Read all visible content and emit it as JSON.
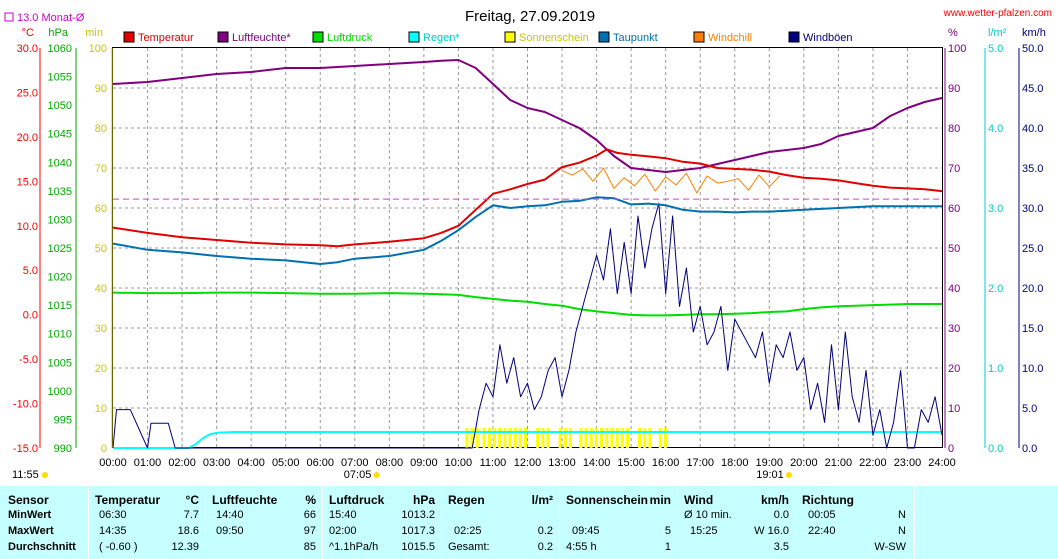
{
  "header": {
    "title": "Freitag, 27.09.2019",
    "site": "www.wetter-pfalzen.com",
    "month_avg": "13.0 Monat-Ø"
  },
  "chart_data": {
    "type": "line",
    "title": "Freitag, 27.09.2019",
    "x_ticks": [
      "00:00",
      "01:00",
      "02:00",
      "03:00",
      "04:00",
      "05:00",
      "06:00",
      "07:00",
      "08:00",
      "09:00",
      "10:00",
      "11:00",
      "12:00",
      "13:00",
      "14:00",
      "15:00",
      "16:00",
      "17:00",
      "18:00",
      "19:00",
      "20:00",
      "21:00",
      "22:00",
      "23:00",
      "24:00"
    ],
    "x_range": [
      0,
      24
    ],
    "extra_time_labels": [
      {
        "label": "11:55",
        "hour": 0
      },
      {
        "label": "07:05",
        "hour": 7.08
      },
      {
        "label": "19:01",
        "hour": 19.02
      }
    ],
    "axes": {
      "temp": {
        "unit": "°C",
        "range": [
          -15,
          30
        ],
        "ticks": [
          "30.0",
          "25.0",
          "20.0",
          "15.0",
          "10.0",
          "5.0",
          "0.0",
          "-5.0",
          "-10.0",
          "-15.0"
        ],
        "color": "#ff0000"
      },
      "pressure": {
        "unit": "hPa",
        "range": [
          990,
          1060
        ],
        "ticks": [
          "1060",
          "1055",
          "1050",
          "1045",
          "1040",
          "1035",
          "1030",
          "1025",
          "1020",
          "1015",
          "1010",
          "1005",
          "1000",
          "995",
          "990"
        ],
        "color": "#00aa00"
      },
      "minutes": {
        "unit": "min",
        "range": [
          0,
          100
        ],
        "ticks": [
          "100",
          "90",
          "80",
          "70",
          "60",
          "50",
          "40",
          "30",
          "20",
          "10",
          "0"
        ],
        "color": "#c8c800"
      },
      "humidity": {
        "unit": "%",
        "range": [
          0,
          100
        ],
        "ticks": [
          "100",
          "90",
          "80",
          "70",
          "60",
          "50",
          "40",
          "30",
          "20",
          "10",
          "0"
        ],
        "color": "#800080"
      },
      "rain": {
        "unit": "l/m²",
        "range": [
          0,
          5
        ],
        "ticks": [
          "5.0",
          "4.0",
          "3.0",
          "2.0",
          "1.0",
          "0.0"
        ],
        "color": "#00cccc"
      },
      "wind": {
        "unit": "km/h",
        "range": [
          0,
          50
        ],
        "ticks": [
          "50.0",
          "45.0",
          "40.0",
          "35.0",
          "30.0",
          "25.0",
          "20.0",
          "15.0",
          "10.0",
          "5.0",
          "0.0"
        ],
        "color": "#000080"
      }
    },
    "legend": [
      {
        "name": "Temperatur",
        "color": "#e00000"
      },
      {
        "name": "Luftfeuchte*",
        "color": "#800080"
      },
      {
        "name": "Luftdruck",
        "color": "#00dd00"
      },
      {
        "name": "Regen*",
        "color": "#00ffff"
      },
      {
        "name": "Sonnenschein",
        "color": "#ffff00"
      },
      {
        "name": "Taupunkt",
        "color": "#0070b0"
      },
      {
        "name": "Windchill",
        "color": "#ff8000"
      },
      {
        "name": "Windböen",
        "color": "#000080"
      }
    ],
    "month_avg_temp": 13.0,
    "series": [
      {
        "name": "Temperatur",
        "axis": "temp",
        "color": "#e00000",
        "x": [
          0,
          1,
          2,
          3,
          4,
          5,
          6,
          6.5,
          7,
          8,
          9,
          9.5,
          10,
          10.5,
          11,
          11.5,
          12,
          12.5,
          13,
          13.5,
          14,
          14.3,
          14.6,
          15,
          15.5,
          16,
          16.5,
          17,
          17.5,
          18,
          18.5,
          19,
          19.5,
          20,
          20.5,
          21,
          21.5,
          22,
          22.5,
          23,
          23.5,
          24
        ],
        "y": [
          9.8,
          9.2,
          8.7,
          8.4,
          8.1,
          7.9,
          7.8,
          7.7,
          7.9,
          8.2,
          8.6,
          9.2,
          10.0,
          11.8,
          13.6,
          14.1,
          14.7,
          15.2,
          16.6,
          17.1,
          17.9,
          18.6,
          18.2,
          18.0,
          17.8,
          17.6,
          17.2,
          17.0,
          16.5,
          16.4,
          16.3,
          16.1,
          15.7,
          15.4,
          15.3,
          15.1,
          14.8,
          14.5,
          14.3,
          14.2,
          14.1,
          13.9
        ]
      },
      {
        "name": "Luftfeuchte*",
        "axis": "humidity",
        "color": "#800080",
        "x": [
          0,
          1,
          2,
          3,
          4,
          5,
          6,
          7,
          8,
          9,
          9.5,
          10,
          10.5,
          11,
          11.5,
          12,
          12.5,
          13,
          13.5,
          14,
          14.5,
          15,
          15.5,
          16,
          16.5,
          17,
          17.5,
          18,
          18.5,
          19,
          19.5,
          20,
          20.5,
          21,
          21.5,
          22,
          22.5,
          23,
          23.5,
          24
        ],
        "y": [
          91,
          91.5,
          92.5,
          93.5,
          94,
          95,
          95,
          95.5,
          96,
          96.5,
          96.8,
          97,
          95,
          91,
          87,
          85,
          84,
          82,
          80,
          77,
          73,
          70,
          69.5,
          69,
          69.5,
          70,
          71,
          72,
          73,
          74,
          74.5,
          75,
          76,
          78,
          79,
          80,
          83,
          85,
          86.5,
          87.5
        ]
      },
      {
        "name": "Luftdruck",
        "axis": "pressure",
        "color": "#00dd00",
        "x": [
          0,
          1,
          2,
          3,
          4,
          5,
          6,
          7,
          8,
          9,
          9.5,
          10,
          10.5,
          11,
          11.5,
          12,
          12.5,
          13,
          13.5,
          14,
          14.5,
          15,
          15.5,
          16,
          16.5,
          17,
          17.5,
          18,
          18.5,
          19,
          19.5,
          20,
          20.5,
          21,
          21.5,
          22,
          22.5,
          23,
          23.5,
          24
        ],
        "y": [
          1017.2,
          1017.1,
          1017.1,
          1017.2,
          1017.2,
          1017.1,
          1017.0,
          1017.0,
          1017.1,
          1017.0,
          1016.9,
          1016.8,
          1016.4,
          1016.1,
          1015.8,
          1015.6,
          1015.2,
          1014.9,
          1014.3,
          1013.9,
          1013.6,
          1013.3,
          1013.2,
          1013.2,
          1013.3,
          1013.4,
          1013.4,
          1013.5,
          1013.6,
          1013.8,
          1013.9,
          1014.3,
          1014.6,
          1014.8,
          1014.9,
          1015.0,
          1015.1,
          1015.2,
          1015.2,
          1015.2
        ]
      },
      {
        "name": "Regen*",
        "axis": "rain",
        "color": "#00ffff",
        "x": [
          0,
          2.2,
          2.4,
          2.6,
          2.8,
          3.0,
          3.5,
          4,
          6,
          8,
          10,
          12,
          14,
          16,
          18,
          20,
          22,
          23.5,
          24
        ],
        "y": [
          0,
          0,
          0.05,
          0.12,
          0.17,
          0.19,
          0.2,
          0.2,
          0.2,
          0.2,
          0.2,
          0.2,
          0.2,
          0.2,
          0.2,
          0.2,
          0.2,
          0.2,
          0.2
        ]
      },
      {
        "name": "Taupunkt",
        "axis": "temp",
        "color": "#0070b0",
        "x": [
          0,
          1,
          2,
          3,
          4,
          5,
          6,
          6.5,
          7,
          8,
          9,
          9.5,
          10,
          10.5,
          11,
          11.5,
          12,
          12.5,
          13,
          13.5,
          14,
          14.5,
          15,
          15.5,
          16,
          16.5,
          17,
          17.5,
          18,
          18.5,
          19,
          19.5,
          20,
          20.5,
          21,
          21.5,
          22,
          22.5,
          23,
          23.5,
          24
        ],
        "y": [
          8.0,
          7.3,
          7.0,
          6.6,
          6.3,
          6.1,
          5.7,
          5.9,
          6.3,
          6.6,
          7.3,
          8.3,
          9.5,
          11.0,
          12.3,
          12.0,
          12.2,
          12.3,
          12.7,
          12.8,
          13.2,
          13.1,
          12.4,
          12.5,
          12.3,
          11.8,
          11.6,
          11.6,
          11.5,
          11.6,
          11.6,
          11.7,
          11.8,
          11.9,
          12.0,
          12.1,
          12.2,
          12.2,
          12.2,
          12.2,
          12.2
        ]
      },
      {
        "name": "Windchill",
        "axis": "temp",
        "color": "#ff8000",
        "x": [
          13,
          13.3,
          13.6,
          13.9,
          14.2,
          14.5,
          14.8,
          15.1,
          15.4,
          15.7,
          16,
          16.3,
          16.6,
          16.9,
          17.2,
          17.5,
          17.8,
          18.1,
          18.4,
          18.7,
          19,
          19.3
        ],
        "y": [
          16.2,
          15.7,
          16.4,
          15.0,
          16.5,
          14.2,
          15.4,
          14.5,
          15.8,
          13.9,
          15.5,
          14.6,
          15.9,
          13.7,
          15.6,
          14.8,
          15.0,
          15.3,
          14.0,
          15.7,
          14.4,
          15.6
        ]
      },
      {
        "name": "Windböen",
        "axis": "wind",
        "color": "#000080",
        "x": [
          0,
          0.1,
          0.5,
          1.0,
          1.1,
          1.2,
          1.6,
          1.8,
          2,
          10.4,
          10.6,
          10.8,
          11,
          11.2,
          11.4,
          11.6,
          11.8,
          12,
          12.2,
          12.4,
          12.6,
          12.8,
          13,
          13.2,
          13.4,
          13.6,
          13.8,
          14,
          14.2,
          14.4,
          14.6,
          14.8,
          15,
          15.2,
          15.4,
          15.6,
          15.8,
          16,
          16.2,
          16.4,
          16.6,
          16.8,
          17,
          17.2,
          17.4,
          17.6,
          17.8,
          18,
          18.2,
          18.4,
          18.6,
          18.8,
          19,
          19.2,
          19.4,
          19.6,
          19.8,
          20,
          20.2,
          20.4,
          20.6,
          20.8,
          21,
          21.2,
          21.4,
          21.6,
          21.8,
          22,
          22.2,
          22.4,
          22.6,
          22.8,
          23,
          23.2,
          23.4,
          23.6,
          23.8,
          24
        ],
        "y": [
          0,
          4.8,
          4.8,
          0,
          3.1,
          3.1,
          3.1,
          0,
          0,
          0,
          4.8,
          8.1,
          6.4,
          12.9,
          8.1,
          11.3,
          6.4,
          8.1,
          4.8,
          6.4,
          9.7,
          11.3,
          6.4,
          9.7,
          14.5,
          17.7,
          20.9,
          24.1,
          21.0,
          27.4,
          19.3,
          25.7,
          19.3,
          29.0,
          22.5,
          27.4,
          30.6,
          19.3,
          29.0,
          17.7,
          22.5,
          14.5,
          17.7,
          12.9,
          14.5,
          17.7,
          9.7,
          16.1,
          14.5,
          12.9,
          11.3,
          14.5,
          8.1,
          12.9,
          11.3,
          14.5,
          9.7,
          11.3,
          4.8,
          8.1,
          3.2,
          12.9,
          4.8,
          14.5,
          6.4,
          3.2,
          9.7,
          1.6,
          4.8,
          0,
          3.2,
          9.7,
          0,
          0,
          4.8,
          3.2,
          6.4,
          1.6
        ]
      }
    ],
    "sunshine_bars": {
      "axis": "minutes",
      "color": "#ffff00",
      "x": [
        10.2,
        10.35,
        10.5,
        10.7,
        10.85,
        11.0,
        11.15,
        11.3,
        11.45,
        11.6,
        11.75,
        11.9,
        12.25,
        12.4,
        12.55,
        12.9,
        13.05,
        13.2,
        13.5,
        13.65,
        13.8,
        13.95,
        14.1,
        14.25,
        14.4,
        14.55,
        14.7,
        14.85,
        15.2,
        15.35,
        15.5,
        15.8,
        15.95
      ],
      "y": [
        5,
        5,
        5,
        5,
        5,
        5,
        5,
        5,
        5,
        5,
        5,
        5,
        5,
        5,
        5,
        5,
        5,
        5,
        5,
        5,
        5,
        5,
        5,
        5,
        5,
        5,
        5,
        5,
        5,
        5,
        5,
        5,
        5
      ]
    }
  },
  "stats": {
    "sensor": {
      "label": "Sensor",
      "rows": [
        "MinWert",
        "MaxWert",
        "Durchschnitt"
      ]
    },
    "temperatur": {
      "label": "Temperatur",
      "unit": "°C",
      "rows": [
        [
          "06:30",
          "7.7"
        ],
        [
          "14:35",
          "18.6"
        ],
        [
          "( -0.60 )",
          "12.39"
        ]
      ]
    },
    "luftfeuchte": {
      "label": "Luftfeuchte",
      "unit": "%",
      "rows": [
        [
          "14:40",
          "66"
        ],
        [
          "09:50",
          "97"
        ],
        [
          "",
          "85"
        ]
      ]
    },
    "luftdruck": {
      "label": "Luftdruck",
      "unit": "hPa",
      "rows": [
        [
          "15:40",
          "1013.2"
        ],
        [
          "02:00",
          "1017.3"
        ],
        [
          "^1.1hPa/h",
          "1015.5"
        ]
      ]
    },
    "regen": {
      "label": "Regen",
      "unit": "l/m²",
      "rows": [
        [
          "",
          ""
        ],
        [
          "02:25",
          "0.2"
        ],
        [
          "Gesamt:",
          "0.2"
        ]
      ]
    },
    "sonnenschein": {
      "label": "Sonnenschein",
      "unit": "min",
      "rows": [
        [
          "",
          ""
        ],
        [
          "09:45",
          "5"
        ],
        [
          "4:55 h",
          "1"
        ]
      ]
    },
    "wind": {
      "label": "Wind",
      "unit": "km/h",
      "rows": [
        [
          "Ø 10 min.",
          "0.0"
        ],
        [
          "15:25",
          "W 16.0"
        ],
        [
          "",
          "3.5"
        ]
      ]
    },
    "richtung": {
      "label": "Richtung",
      "rows": [
        [
          "00:05",
          "N"
        ],
        [
          "22:40",
          "N"
        ],
        [
          "",
          "W-SW"
        ]
      ]
    }
  }
}
